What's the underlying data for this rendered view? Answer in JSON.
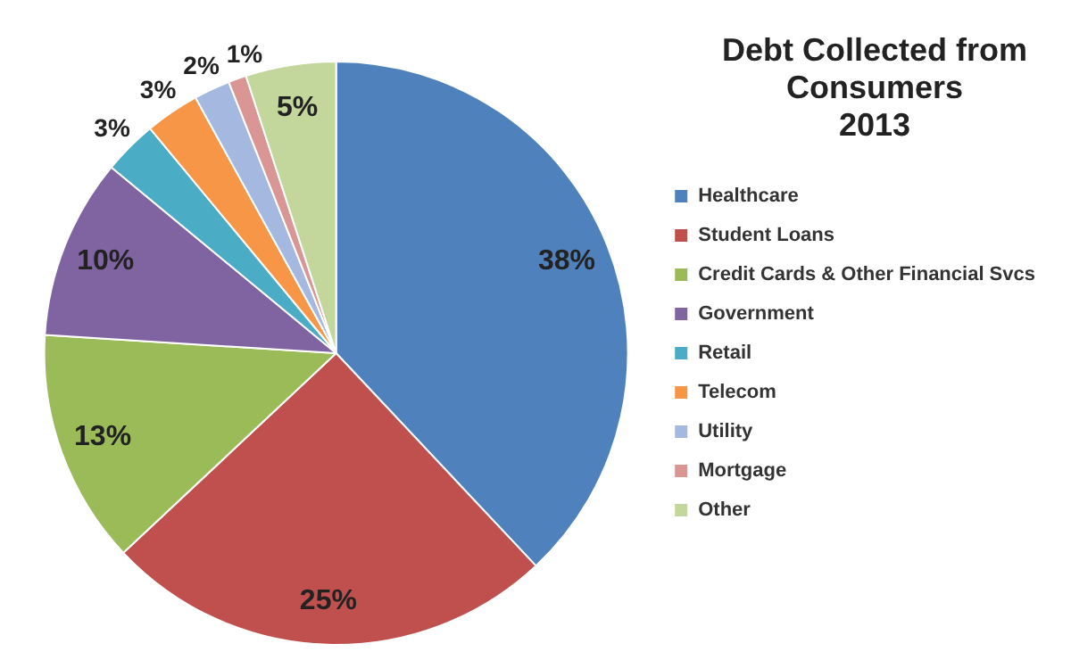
{
  "chart_data": {
    "type": "pie",
    "title": "Debt Collected from Consumers\n2013",
    "categories": [
      "Healthcare",
      "Student Loans",
      "Credit Cards & Other Financial Svcs",
      "Government",
      "Retail",
      "Telecom",
      "Utility",
      "Mortgage",
      "Other"
    ],
    "values": [
      38,
      25,
      13,
      10,
      3,
      3,
      2,
      1,
      5
    ],
    "colors": [
      "#4f81bd",
      "#c0504d",
      "#9bbb59",
      "#8064a2",
      "#4bacc6",
      "#f79646",
      "#a5b9e0",
      "#d99694",
      "#c3d69b"
    ],
    "value_labels": [
      "38%",
      "25%",
      "13%",
      "10%",
      "3%",
      "3%",
      "2%",
      "1%",
      "5%"
    ],
    "legend": "right"
  }
}
